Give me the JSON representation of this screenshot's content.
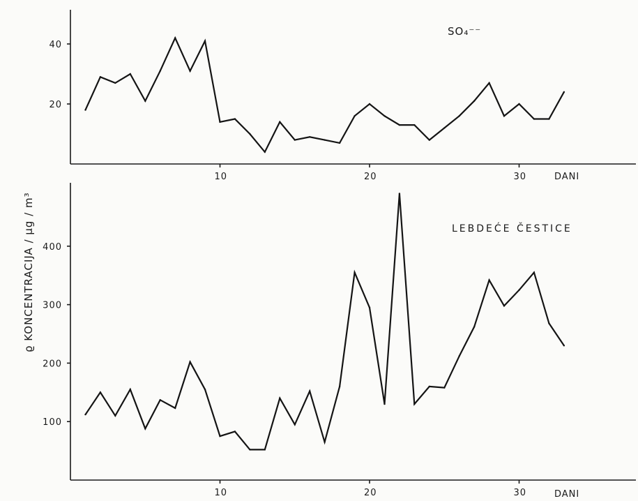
{
  "y_axis_label": "ϱ KONCENTRACIJA / µg / m³",
  "chart_data": [
    {
      "type": "line",
      "name": "so4-panel",
      "title": "SO₄⁻⁻",
      "xlabel": "DANI",
      "ylabel": "ϱ KONCENTRACIJA / µg / m³",
      "xlim": [
        0,
        37
      ],
      "ylim": [
        0,
        50
      ],
      "xticks": [
        10,
        20,
        30
      ],
      "yticks": [
        20,
        40
      ],
      "grid": false,
      "series": [
        {
          "x": [
            1,
            2,
            3,
            4,
            5,
            6,
            7,
            8,
            9,
            10,
            11,
            12,
            13,
            14,
            15,
            16,
            17,
            18,
            19,
            20,
            21,
            22,
            23,
            24,
            25,
            26,
            27,
            28,
            29,
            30,
            31,
            32,
            33
          ],
          "y": [
            18,
            29,
            27,
            30,
            21,
            31,
            42,
            31,
            41,
            14,
            15,
            10,
            4,
            14,
            8,
            9,
            8,
            7,
            16,
            20,
            16,
            13,
            13,
            8,
            12,
            16,
            21,
            27,
            16,
            20,
            15,
            15,
            24
          ]
        }
      ]
    },
    {
      "type": "line",
      "name": "particles-panel",
      "title": "LEBDEĆE ČESTICE",
      "xlabel": "DANI",
      "ylabel": "ϱ KONCENTRACIJA / µg / m³",
      "xlim": [
        0,
        37
      ],
      "ylim": [
        0,
        500
      ],
      "xticks": [
        10,
        20,
        30
      ],
      "yticks": [
        100,
        200,
        300,
        400
      ],
      "grid": false,
      "series": [
        {
          "x": [
            1,
            2,
            3,
            4,
            5,
            6,
            7,
            8,
            9,
            10,
            11,
            12,
            13,
            14,
            15,
            16,
            17,
            18,
            19,
            20,
            21,
            22,
            23,
            24,
            25,
            26,
            27,
            28,
            29,
            30,
            31,
            32,
            33
          ],
          "y": [
            112,
            150,
            110,
            155,
            88,
            137,
            123,
            202,
            155,
            75,
            83,
            52,
            52,
            140,
            95,
            152,
            65,
            160,
            355,
            295,
            130,
            490,
            130,
            160,
            158,
            212,
            262,
            342,
            298,
            325,
            355,
            268,
            230
          ]
        }
      ]
    }
  ]
}
